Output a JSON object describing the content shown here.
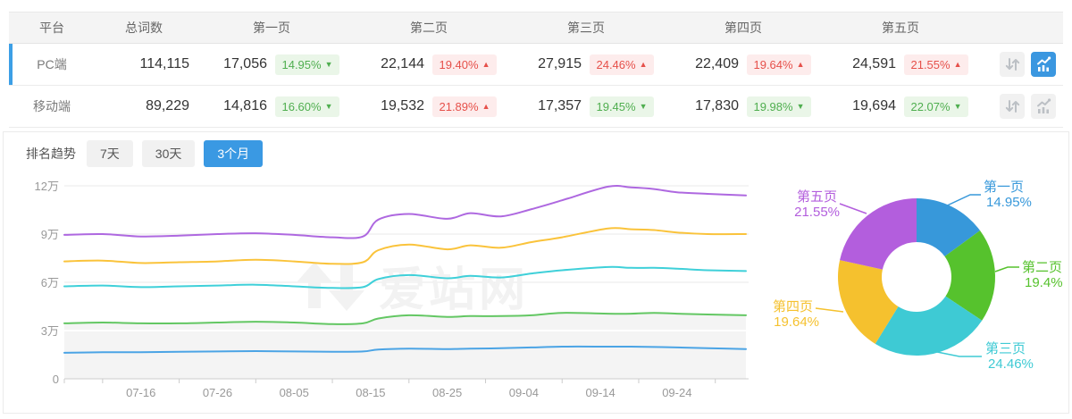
{
  "colors": {
    "accent_blue": "#3a97e0",
    "up_red": "#e6504a",
    "down_green": "#4fae4f",
    "selected_bar": "#3c9fe6"
  },
  "table": {
    "headers": {
      "platform": "平台",
      "total": "总词数",
      "pages": [
        "第一页",
        "第二页",
        "第三页",
        "第四页",
        "第五页"
      ]
    },
    "rows": [
      {
        "platform": "PC端",
        "total": "114,115",
        "selected": true,
        "pages": [
          {
            "count": "17,056",
            "pct": "14.95%",
            "dir": "down",
            "arrow": "▼"
          },
          {
            "count": "22,144",
            "pct": "19.40%",
            "dir": "up",
            "arrow": "▲"
          },
          {
            "count": "27,915",
            "pct": "24.46%",
            "dir": "up",
            "arrow": "▲"
          },
          {
            "count": "22,409",
            "pct": "19.64%",
            "dir": "up",
            "arrow": "▲"
          },
          {
            "count": "24,591",
            "pct": "21.55%",
            "dir": "up",
            "arrow": "▲"
          }
        ],
        "chart_button_active": true
      },
      {
        "platform": "移动端",
        "total": "89,229",
        "selected": false,
        "pages": [
          {
            "count": "14,816",
            "pct": "16.60%",
            "dir": "down",
            "arrow": "▼"
          },
          {
            "count": "19,532",
            "pct": "21.89%",
            "dir": "up",
            "arrow": "▲"
          },
          {
            "count": "17,357",
            "pct": "19.45%",
            "dir": "down",
            "arrow": "▼"
          },
          {
            "count": "17,830",
            "pct": "19.98%",
            "dir": "down",
            "arrow": "▼"
          },
          {
            "count": "19,694",
            "pct": "22.07%",
            "dir": "down",
            "arrow": "▼"
          }
        ],
        "chart_button_active": false
      }
    ]
  },
  "trend": {
    "title": "排名趋势",
    "tabs": [
      {
        "label": "7天",
        "active": false
      },
      {
        "label": "30天",
        "active": false
      },
      {
        "label": "3个月",
        "active": true
      }
    ]
  },
  "chart_data": [
    {
      "type": "line",
      "stacked_cumulative": true,
      "unit": "万",
      "grid": true,
      "x_dates": [
        "07-06",
        "07-11",
        "07-16",
        "07-21",
        "07-26",
        "07-31",
        "08-05",
        "08-10",
        "08-14",
        "08-16",
        "08-20",
        "08-25",
        "08-28",
        "09-01",
        "09-05",
        "09-09",
        "09-15",
        "09-18",
        "09-21",
        "09-24",
        "09-28",
        "10-03"
      ],
      "x_day_offsets": [
        0,
        5,
        10,
        15,
        20,
        25,
        30,
        35,
        39,
        41,
        45,
        50,
        53,
        57,
        61,
        65,
        71,
        74,
        77,
        80,
        84,
        89
      ],
      "x_axis_labels": [
        "07-16",
        "07-26",
        "08-05",
        "08-15",
        "08-25",
        "09-04",
        "09-14",
        "09-24"
      ],
      "x_axis_label_days": [
        10,
        20,
        30,
        40,
        50,
        60,
        70,
        80
      ],
      "y_ticks": [
        "0",
        "3万",
        "6万",
        "9万",
        "12万"
      ],
      "ylim_wan": [
        0,
        12
      ],
      "watermark": "爱站网",
      "series": [
        {
          "name": "第一页",
          "color": "#4ba4e5",
          "values_wan": [
            1.62,
            1.65,
            1.65,
            1.68,
            1.7,
            1.72,
            1.7,
            1.68,
            1.7,
            1.82,
            1.88,
            1.85,
            1.88,
            1.9,
            1.95,
            2.0,
            2.0,
            2.0,
            1.98,
            1.95,
            1.9,
            1.85
          ]
        },
        {
          "name": "第二页",
          "color": "#63c763",
          "area_fill": "#f4f4f4",
          "values_wan": [
            3.45,
            3.5,
            3.45,
            3.45,
            3.5,
            3.55,
            3.5,
            3.4,
            3.45,
            3.75,
            3.95,
            3.85,
            3.9,
            3.9,
            3.95,
            4.1,
            4.05,
            4.05,
            4.1,
            4.05,
            4.0,
            3.95
          ]
        },
        {
          "name": "第三页",
          "color": "#3fd0d9",
          "values_wan": [
            5.75,
            5.8,
            5.7,
            5.75,
            5.8,
            5.85,
            5.75,
            5.65,
            5.7,
            6.2,
            6.45,
            6.25,
            6.4,
            6.3,
            6.55,
            6.75,
            6.95,
            6.9,
            6.9,
            6.85,
            6.75,
            6.7
          ]
        },
        {
          "name": "第四页",
          "color": "#fac33b",
          "values_wan": [
            7.3,
            7.35,
            7.2,
            7.25,
            7.3,
            7.4,
            7.3,
            7.15,
            7.25,
            8.0,
            8.35,
            8.05,
            8.3,
            8.15,
            8.5,
            8.8,
            9.35,
            9.3,
            9.25,
            9.1,
            9.0,
            9.0
          ]
        },
        {
          "name": "第五页",
          "color": "#ae68e0",
          "values_wan": [
            8.95,
            9.0,
            8.85,
            8.9,
            9.0,
            9.05,
            8.95,
            8.8,
            8.85,
            9.9,
            10.25,
            9.95,
            10.3,
            10.1,
            10.55,
            11.1,
            11.95,
            11.9,
            11.8,
            11.6,
            11.5,
            11.4
          ]
        }
      ]
    },
    {
      "type": "pie",
      "donut": true,
      "slices": [
        {
          "label": "第一页",
          "pct": 14.95,
          "pct_label": "14.95%",
          "color": "#3798da"
        },
        {
          "label": "第二页",
          "pct": 19.4,
          "pct_label": "19.4%",
          "color": "#56c22d"
        },
        {
          "label": "第三页",
          "pct": 24.46,
          "pct_label": "24.46%",
          "color": "#3ecad4"
        },
        {
          "label": "第四页",
          "pct": 19.64,
          "pct_label": "19.64%",
          "color": "#f5c12e"
        },
        {
          "label": "第五页",
          "pct": 21.55,
          "pct_label": "21.55%",
          "color": "#b35edd"
        }
      ]
    }
  ]
}
